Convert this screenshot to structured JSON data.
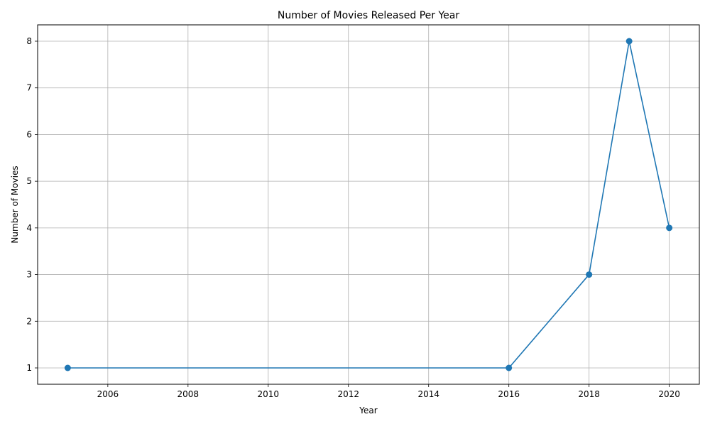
{
  "chart_data": {
    "type": "line",
    "title": "Number of Movies Released Per Year",
    "xlabel": "Year",
    "ylabel": "Number of Movies",
    "x": [
      2005,
      2016,
      2018,
      2019,
      2020
    ],
    "series": [
      {
        "values": [
          1,
          1,
          3,
          8,
          4
        ],
        "color": "#1f77b4",
        "marker": "circle"
      }
    ],
    "xlim": [
      2004.25,
      2020.75
    ],
    "ylim": [
      0.65,
      8.35
    ],
    "xticks": [
      2006,
      2008,
      2010,
      2012,
      2014,
      2016,
      2018,
      2020
    ],
    "xtick_labels": [
      "2006",
      "2008",
      "2010",
      "2012",
      "2014",
      "2016",
      "2018",
      "2020"
    ],
    "yticks": [
      1,
      2,
      3,
      4,
      5,
      6,
      7,
      8
    ],
    "ytick_labels": [
      "1",
      "2",
      "3",
      "4",
      "5",
      "6",
      "7",
      "8"
    ],
    "grid": true,
    "colors": {
      "grid": "#b0b0b0",
      "axes": "#000000",
      "background": "#ffffff"
    }
  }
}
